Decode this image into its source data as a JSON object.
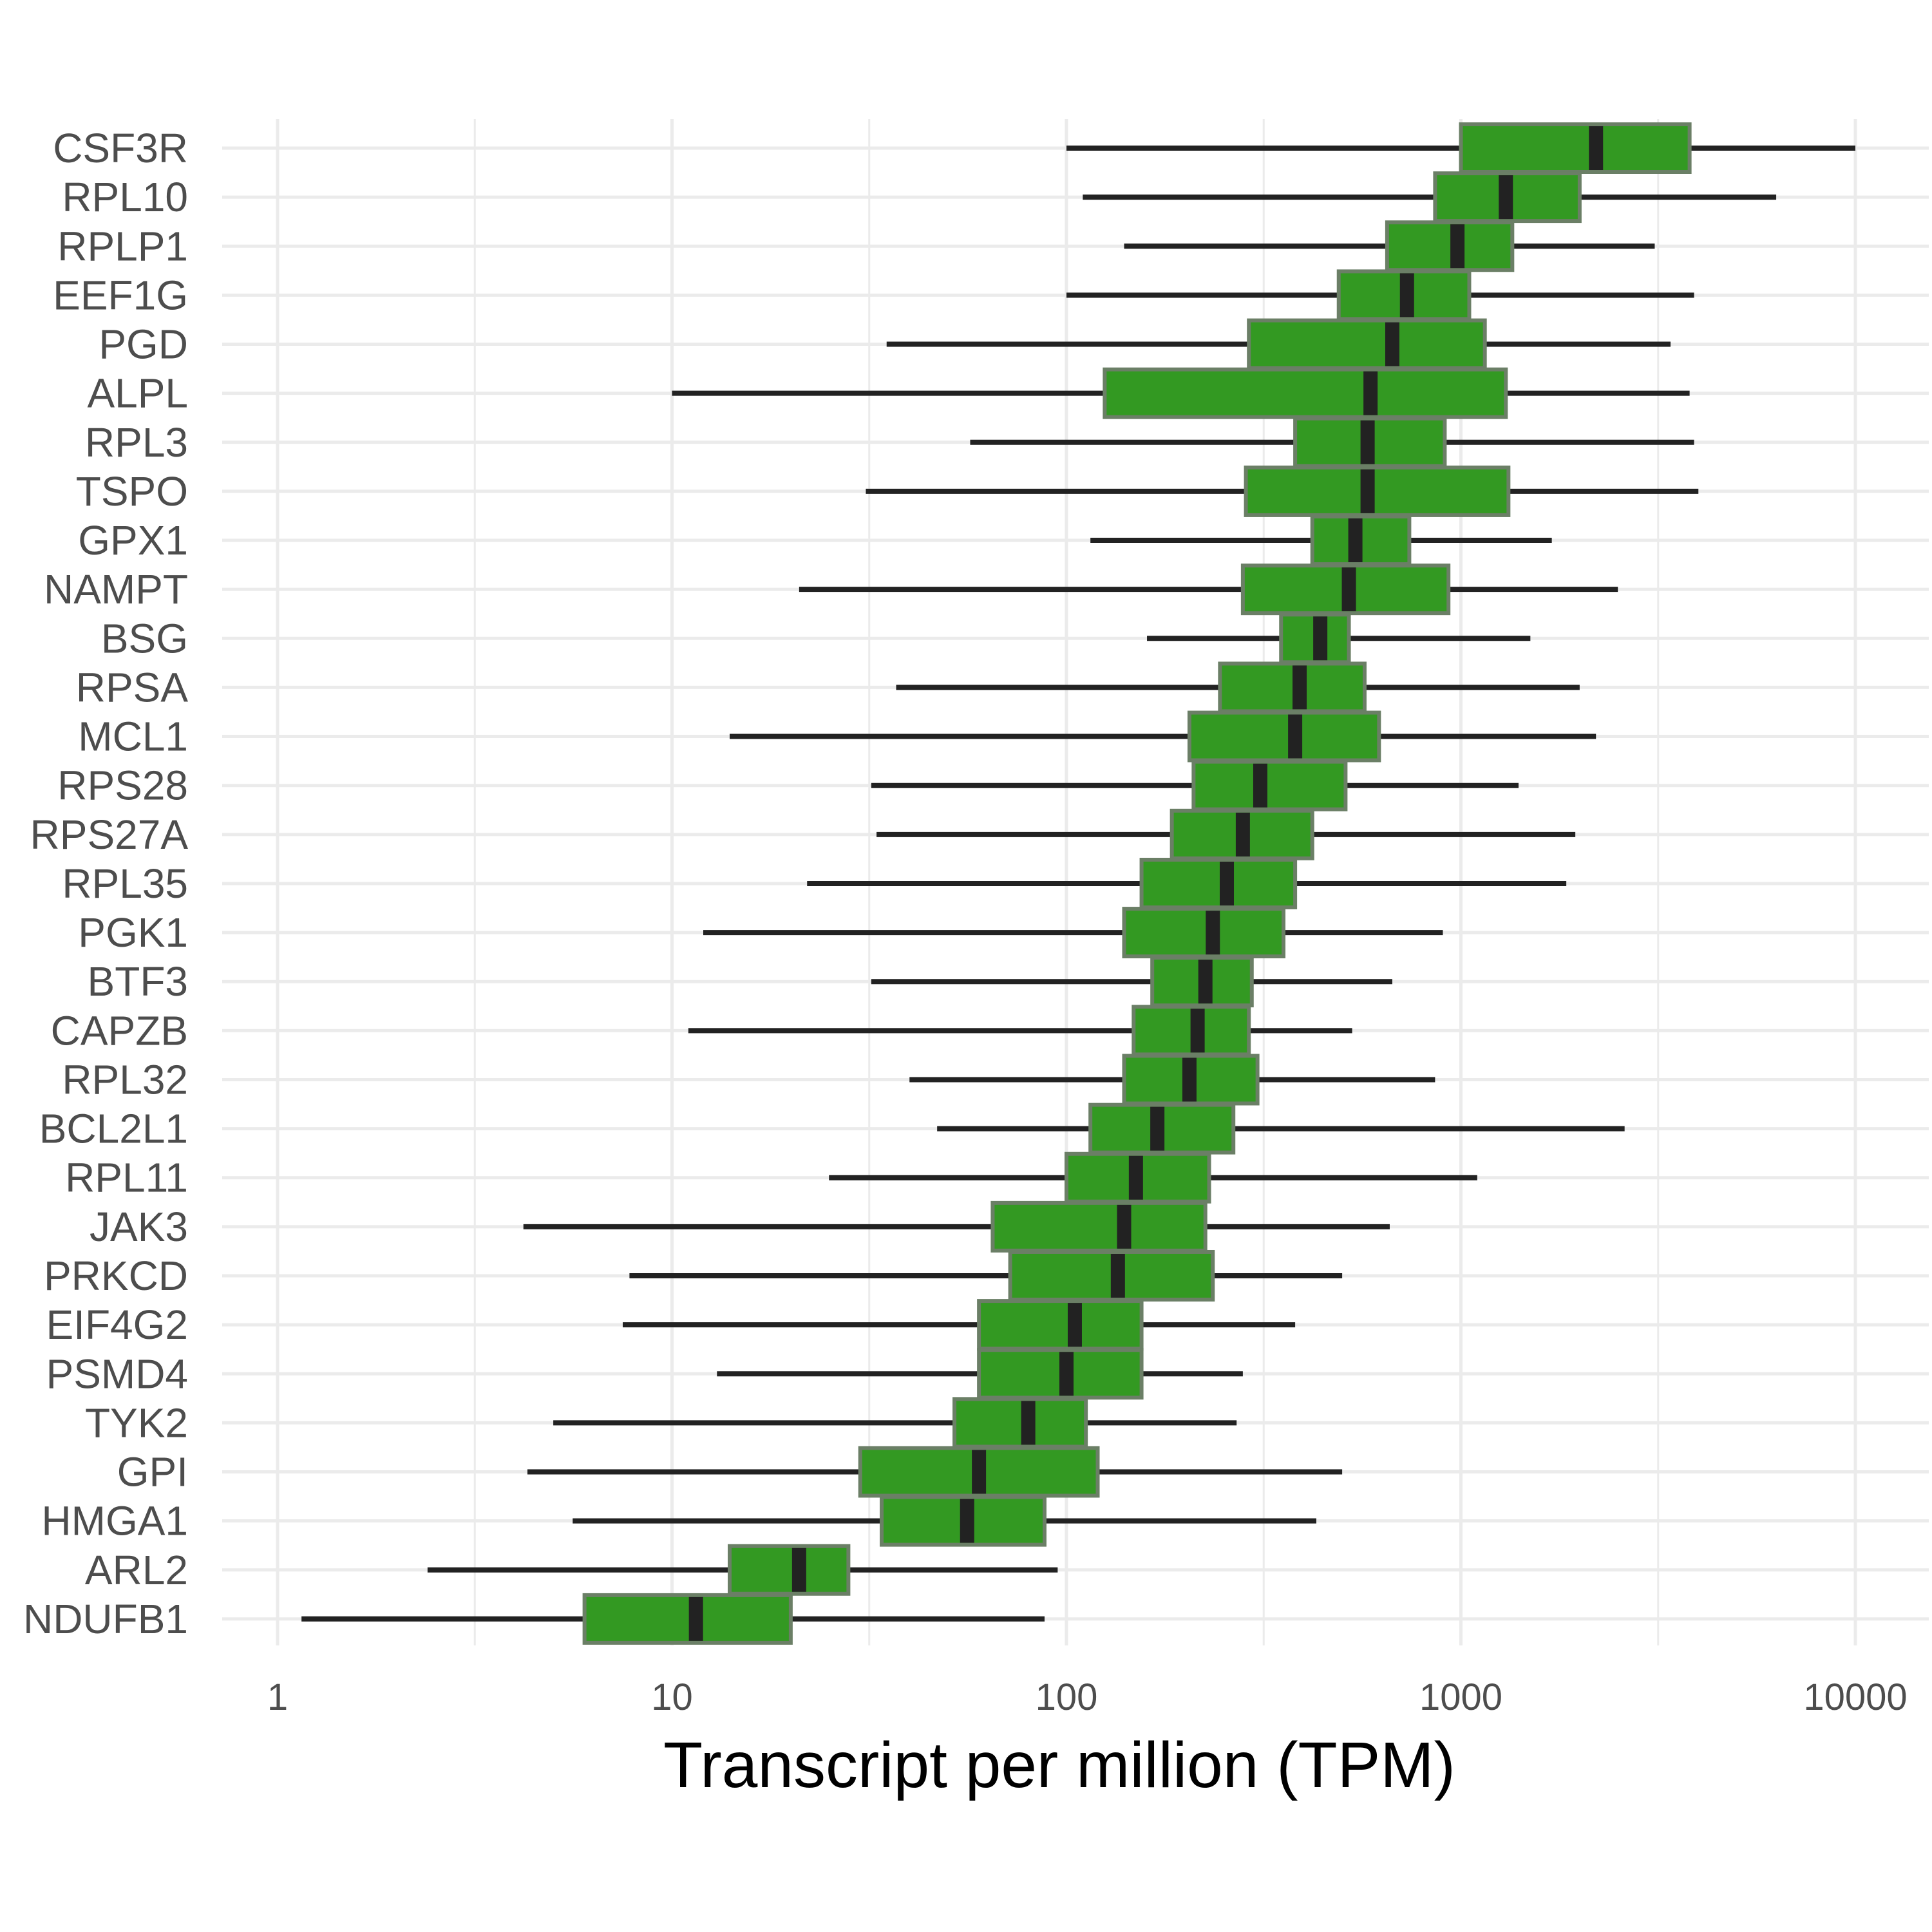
{
  "chart_data": {
    "type": "boxplot",
    "orientation": "horizontal",
    "xlabel": "Transcript per million (TPM)",
    "ylabel": "",
    "x_scale": "log10",
    "xlim": [
      0.75,
      14000
    ],
    "x_ticks": [
      1,
      10,
      100,
      1000,
      10000
    ],
    "x_tick_labels": [
      "1",
      "10",
      "100",
      "1000",
      "10000"
    ],
    "grid": true,
    "box_color": "#339922",
    "box_border_color": "#6b7f66",
    "median_color": "#222222",
    "whisker_color": "#222222",
    "grid_color": "#ebebeb",
    "categories": [
      "CSF3R",
      "RPL10",
      "RPLP1",
      "EEF1G",
      "PGD",
      "ALPL",
      "RPL3",
      "TSPO",
      "GPX1",
      "NAMPT",
      "BSG",
      "RPSA",
      "MCL1",
      "RPS28",
      "RPS27A",
      "RPL35",
      "PGK1",
      "BTF3",
      "CAPZB",
      "RPL32",
      "BCL2L1",
      "RPL11",
      "JAK3",
      "PRKCD",
      "EIF4G2",
      "PSMD4",
      "TYK2",
      "GPI",
      "HMGA1",
      "ARL2",
      "NDUFB1"
    ],
    "boxes": [
      {
        "label": "CSF3R",
        "min": 100,
        "q1": 1000,
        "median": 2200,
        "q3": 3800,
        "max": 10000
      },
      {
        "label": "RPL10",
        "min": 110,
        "q1": 860,
        "median": 1300,
        "q3": 2000,
        "max": 6300
      },
      {
        "label": "RPLP1",
        "min": 140,
        "q1": 650,
        "median": 980,
        "q3": 1350,
        "max": 3100
      },
      {
        "label": "EEF1G",
        "min": 100,
        "q1": 490,
        "median": 730,
        "q3": 1050,
        "max": 3900
      },
      {
        "label": "PGD",
        "min": 35,
        "q1": 290,
        "median": 670,
        "q3": 1150,
        "max": 3400
      },
      {
        "label": "ALPL",
        "min": 10,
        "q1": 125,
        "median": 590,
        "q3": 1300,
        "max": 3800
      },
      {
        "label": "RPL3",
        "min": 57,
        "q1": 380,
        "median": 580,
        "q3": 910,
        "max": 3900
      },
      {
        "label": "TSPO",
        "min": 31,
        "q1": 285,
        "median": 580,
        "q3": 1320,
        "max": 4000
      },
      {
        "label": "GPX1",
        "min": 115,
        "q1": 420,
        "median": 540,
        "q3": 740,
        "max": 1700
      },
      {
        "label": "NAMPT",
        "min": 21,
        "q1": 280,
        "median": 520,
        "q3": 930,
        "max": 2500
      },
      {
        "label": "BSG",
        "min": 160,
        "q1": 350,
        "median": 440,
        "q3": 520,
        "max": 1500
      },
      {
        "label": "RPSA",
        "min": 37,
        "q1": 245,
        "median": 390,
        "q3": 570,
        "max": 2000
      },
      {
        "label": "MCL1",
        "min": 14,
        "q1": 205,
        "median": 380,
        "q3": 620,
        "max": 2200
      },
      {
        "label": "RPS28",
        "min": 32,
        "q1": 210,
        "median": 310,
        "q3": 510,
        "max": 1400
      },
      {
        "label": "RPS27A",
        "min": 33,
        "q1": 185,
        "median": 280,
        "q3": 420,
        "max": 1950
      },
      {
        "label": "RPL35",
        "min": 22,
        "q1": 155,
        "median": 255,
        "q3": 380,
        "max": 1850
      },
      {
        "label": "PGK1",
        "min": 12,
        "q1": 140,
        "median": 235,
        "q3": 355,
        "max": 900
      },
      {
        "label": "BTF3",
        "min": 32,
        "q1": 165,
        "median": 225,
        "q3": 295,
        "max": 670
      },
      {
        "label": "CAPZB",
        "min": 11,
        "q1": 148,
        "median": 215,
        "q3": 290,
        "max": 530
      },
      {
        "label": "RPL32",
        "min": 40,
        "q1": 140,
        "median": 205,
        "q3": 305,
        "max": 860
      },
      {
        "label": "BCL2L1",
        "min": 47,
        "q1": 115,
        "median": 170,
        "q3": 265,
        "max": 2600
      },
      {
        "label": "RPL11",
        "min": 25,
        "q1": 100,
        "median": 150,
        "q3": 230,
        "max": 1100
      },
      {
        "label": "JAK3",
        "min": 4.2,
        "q1": 65,
        "median": 140,
        "q3": 225,
        "max": 660
      },
      {
        "label": "PRKCD",
        "min": 7.8,
        "q1": 72,
        "median": 135,
        "q3": 235,
        "max": 500
      },
      {
        "label": "EIF4G2",
        "min": 7.5,
        "q1": 60,
        "median": 105,
        "q3": 155,
        "max": 380
      },
      {
        "label": "PSMD4",
        "min": 13,
        "q1": 60,
        "median": 100,
        "q3": 155,
        "max": 280
      },
      {
        "label": "TYK2",
        "min": 5,
        "q1": 52,
        "median": 80,
        "q3": 112,
        "max": 270
      },
      {
        "label": "GPI",
        "min": 4.3,
        "q1": 30,
        "median": 60,
        "q3": 120,
        "max": 500
      },
      {
        "label": "HMGA1",
        "min": 5.6,
        "q1": 34,
        "median": 56,
        "q3": 88,
        "max": 430
      },
      {
        "label": "ARL2",
        "min": 2.4,
        "q1": 14,
        "median": 21,
        "q3": 28,
        "max": 95
      },
      {
        "label": "NDUFB1",
        "min": 1.15,
        "q1": 6,
        "median": 11.5,
        "q3": 20,
        "max": 88
      }
    ]
  }
}
